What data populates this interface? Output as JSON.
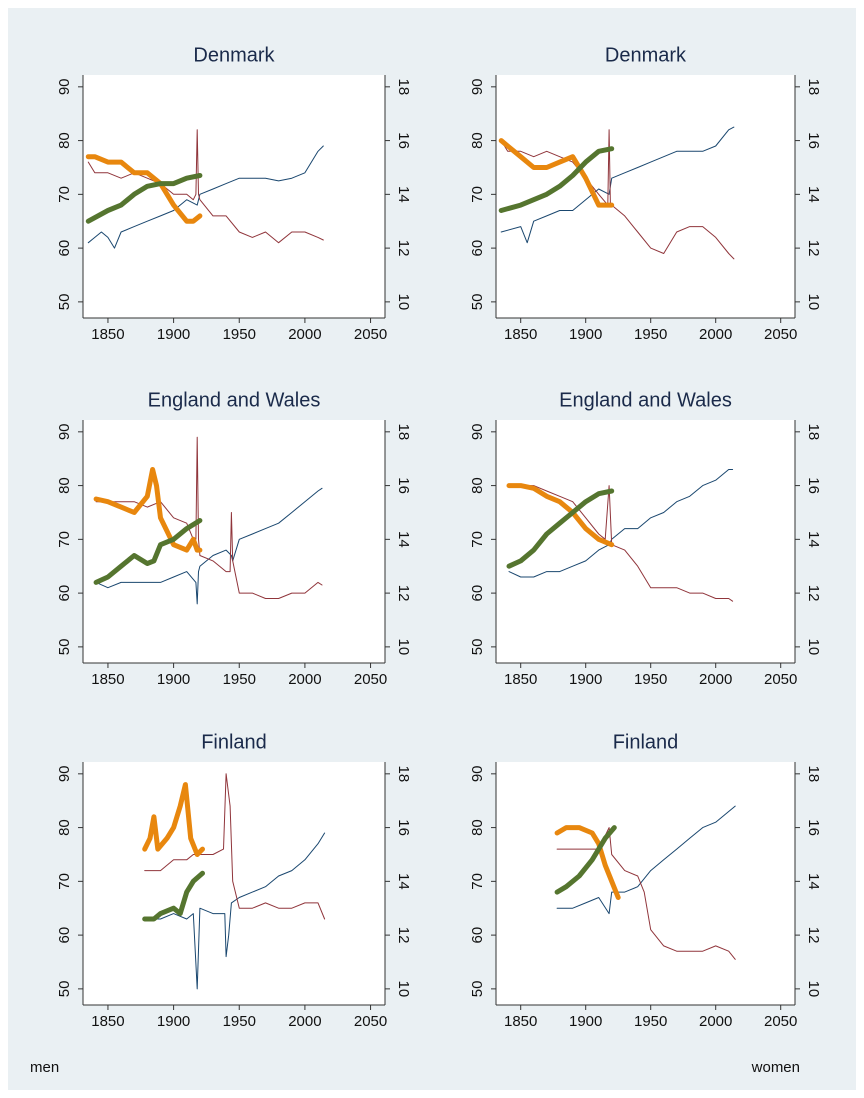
{
  "chart_data": [
    {
      "type": "line",
      "title": "Denmark",
      "xlim": [
        1831,
        2061
      ],
      "xticks": [
        1850,
        1900,
        1950,
        2000,
        2050
      ],
      "ylim": [
        47,
        92.2
      ],
      "yticks": [
        50,
        60,
        70,
        80,
        90
      ],
      "y2lim": [
        9.4,
        18.44
      ],
      "y2ticks": [
        10,
        12,
        14,
        16,
        18
      ],
      "series": [
        {
          "color": "#1a476f",
          "width": 1,
          "x": [
            1835,
            1840,
            1845,
            1850,
            1855,
            1860,
            1870,
            1880,
            1890,
            1900,
            1910,
            1918,
            1920,
            1930,
            1940,
            1950,
            1960,
            1970,
            1980,
            1990,
            2000,
            2010,
            2014
          ],
          "values": [
            61,
            62,
            63,
            62,
            60,
            63,
            64,
            65,
            66,
            67,
            69,
            68,
            70,
            71,
            72,
            73,
            73,
            73,
            72.5,
            73,
            74,
            78,
            79
          ]
        },
        {
          "color": "#90353b",
          "width": 1,
          "x": [
            1835,
            1840,
            1850,
            1860,
            1870,
            1880,
            1890,
            1900,
            1910,
            1915,
            1917,
            1918,
            1919,
            1920,
            1930,
            1940,
            1950,
            1960,
            1970,
            1980,
            1990,
            2000,
            2010,
            2014
          ],
          "values": [
            76,
            74,
            74,
            73,
            74,
            73,
            72,
            70,
            70,
            69,
            70,
            82,
            70,
            69,
            66,
            66,
            63,
            62,
            63,
            61,
            63,
            63,
            62,
            61.5
          ]
        },
        {
          "color": "#e8870e",
          "width": 5,
          "axis": "y2",
          "x": [
            1835,
            1840,
            1850,
            1860,
            1870,
            1880,
            1890,
            1900,
            1910,
            1915,
            1920
          ],
          "values": [
            15.4,
            15.4,
            15.2,
            15.2,
            14.8,
            14.8,
            14.4,
            13.6,
            13.0,
            13.0,
            13.2
          ]
        },
        {
          "color": "#55752f",
          "width": 5,
          "axis": "y2",
          "x": [
            1835,
            1850,
            1860,
            1870,
            1880,
            1890,
            1900,
            1910,
            1920
          ],
          "values": [
            13.0,
            13.4,
            13.6,
            14.0,
            14.3,
            14.4,
            14.4,
            14.6,
            14.7
          ]
        }
      ]
    },
    {
      "type": "line",
      "title": "Denmark",
      "xlim": [
        1831,
        2061
      ],
      "xticks": [
        1850,
        1900,
        1950,
        2000,
        2050
      ],
      "ylim": [
        47,
        92.2
      ],
      "yticks": [
        50,
        60,
        70,
        80,
        90
      ],
      "y2lim": [
        9.4,
        18.44
      ],
      "y2ticks": [
        10,
        12,
        14,
        16,
        18
      ],
      "series": [
        {
          "color": "#1a476f",
          "width": 1,
          "x": [
            1835,
            1850,
            1855,
            1860,
            1870,
            1880,
            1890,
            1900,
            1910,
            1918,
            1920,
            1930,
            1940,
            1950,
            1960,
            1970,
            1980,
            1990,
            2000,
            2010,
            2014
          ],
          "values": [
            63,
            64,
            61,
            65,
            66,
            67,
            67,
            69,
            71,
            70,
            73,
            74,
            75,
            76,
            77,
            78,
            78,
            78,
            79,
            82,
            82.5
          ]
        },
        {
          "color": "#90353b",
          "width": 1,
          "x": [
            1835,
            1840,
            1850,
            1860,
            1870,
            1880,
            1890,
            1900,
            1910,
            1917,
            1918,
            1919,
            1920,
            1930,
            1940,
            1950,
            1960,
            1970,
            1980,
            1990,
            2000,
            2010,
            2014
          ],
          "values": [
            80,
            78,
            78,
            77,
            78,
            77,
            76,
            73,
            70,
            68,
            82,
            68,
            68,
            66,
            63,
            60,
            59,
            63,
            64,
            64,
            62,
            59,
            58
          ]
        },
        {
          "color": "#e8870e",
          "width": 5,
          "axis": "y2",
          "x": [
            1835,
            1840,
            1850,
            1860,
            1870,
            1880,
            1890,
            1900,
            1910,
            1920
          ],
          "values": [
            16.0,
            15.8,
            15.4,
            15.0,
            15.0,
            15.2,
            15.4,
            14.6,
            13.6,
            13.6
          ]
        },
        {
          "color": "#55752f",
          "width": 5,
          "axis": "y2",
          "x": [
            1835,
            1850,
            1860,
            1870,
            1880,
            1890,
            1900,
            1910,
            1920
          ],
          "values": [
            13.4,
            13.6,
            13.8,
            14.0,
            14.3,
            14.7,
            15.2,
            15.6,
            15.7
          ]
        }
      ]
    },
    {
      "type": "line",
      "title": "England and Wales",
      "xlim": [
        1831,
        2061
      ],
      "xticks": [
        1850,
        1900,
        1950,
        2000,
        2050
      ],
      "ylim": [
        47,
        92.2
      ],
      "yticks": [
        50,
        60,
        70,
        80,
        90
      ],
      "y2lim": [
        9.4,
        18.44
      ],
      "y2ticks": [
        10,
        12,
        14,
        16,
        18
      ],
      "series": [
        {
          "color": "#1a476f",
          "width": 1,
          "x": [
            1841,
            1850,
            1860,
            1870,
            1880,
            1890,
            1900,
            1910,
            1917,
            1918,
            1919,
            1920,
            1930,
            1940,
            1944,
            1945,
            1950,
            1960,
            1970,
            1980,
            1990,
            2000,
            2010,
            2013
          ],
          "values": [
            62,
            61,
            62,
            62,
            62,
            62,
            63,
            64,
            62,
            58,
            64,
            65,
            67,
            68,
            67,
            66,
            70,
            71,
            72,
            73,
            75,
            77,
            79,
            79.5
          ]
        },
        {
          "color": "#90353b",
          "width": 1,
          "x": [
            1841,
            1850,
            1860,
            1870,
            1880,
            1890,
            1900,
            1910,
            1915,
            1917,
            1918,
            1919,
            1920,
            1930,
            1940,
            1943,
            1944,
            1945,
            1950,
            1960,
            1970,
            1980,
            1990,
            2000,
            2010,
            2013
          ],
          "values": [
            77,
            77,
            77,
            77,
            76,
            77,
            74,
            73,
            70,
            70,
            89,
            70,
            67,
            66,
            64,
            64,
            75,
            66,
            60,
            60,
            59,
            59,
            60,
            60,
            62,
            61.5
          ]
        },
        {
          "color": "#e8870e",
          "width": 5,
          "axis": "y2",
          "x": [
            1841,
            1850,
            1860,
            1870,
            1880,
            1884,
            1887,
            1890,
            1900,
            1910,
            1915,
            1918,
            1920
          ],
          "values": [
            15.5,
            15.4,
            15.2,
            15.0,
            15.6,
            16.6,
            16.0,
            14.8,
            13.8,
            13.6,
            14.0,
            13.6,
            13.6
          ]
        },
        {
          "color": "#55752f",
          "width": 5,
          "axis": "y2",
          "x": [
            1841,
            1850,
            1860,
            1870,
            1880,
            1885,
            1890,
            1900,
            1910,
            1920
          ],
          "values": [
            12.4,
            12.6,
            13.0,
            13.4,
            13.1,
            13.2,
            13.8,
            14.0,
            14.4,
            14.7
          ]
        }
      ]
    },
    {
      "type": "line",
      "title": "England and Wales",
      "xlim": [
        1831,
        2061
      ],
      "xticks": [
        1850,
        1900,
        1950,
        2000,
        2050
      ],
      "ylim": [
        47,
        92.2
      ],
      "yticks": [
        50,
        60,
        70,
        80,
        90
      ],
      "y2lim": [
        9.4,
        18.44
      ],
      "y2ticks": [
        10,
        12,
        14,
        16,
        18
      ],
      "series": [
        {
          "color": "#1a476f",
          "width": 1,
          "x": [
            1841,
            1850,
            1860,
            1870,
            1880,
            1890,
            1900,
            1910,
            1918,
            1920,
            1930,
            1940,
            1950,
            1960,
            1970,
            1980,
            1990,
            2000,
            2010,
            2013
          ],
          "values": [
            64,
            63,
            63,
            64,
            64,
            65,
            66,
            68,
            69,
            70,
            72,
            72,
            74,
            75,
            77,
            78,
            80,
            81,
            83,
            83
          ]
        },
        {
          "color": "#90353b",
          "width": 1,
          "x": [
            1841,
            1850,
            1860,
            1870,
            1880,
            1890,
            1900,
            1910,
            1915,
            1918,
            1920,
            1930,
            1940,
            1950,
            1960,
            1970,
            1980,
            1990,
            2000,
            2010,
            2013
          ],
          "values": [
            80,
            80,
            80,
            79,
            78,
            77,
            74,
            71,
            70,
            80,
            69,
            68,
            65,
            61,
            61,
            61,
            60,
            60,
            59,
            59,
            58.5
          ]
        },
        {
          "color": "#e8870e",
          "width": 5,
          "axis": "y2",
          "x": [
            1841,
            1850,
            1860,
            1870,
            1880,
            1890,
            1900,
            1910,
            1920
          ],
          "values": [
            16.0,
            16.0,
            15.9,
            15.6,
            15.4,
            15.0,
            14.4,
            14.0,
            13.8
          ]
        },
        {
          "color": "#55752f",
          "width": 5,
          "axis": "y2",
          "x": [
            1841,
            1850,
            1860,
            1870,
            1880,
            1890,
            1900,
            1910,
            1920
          ],
          "values": [
            13.0,
            13.2,
            13.6,
            14.2,
            14.6,
            15.0,
            15.4,
            15.7,
            15.8
          ]
        }
      ]
    },
    {
      "type": "line",
      "title": "Finland",
      "xlim": [
        1831,
        2061
      ],
      "xticks": [
        1850,
        1900,
        1950,
        2000,
        2050
      ],
      "ylim": [
        47,
        92.2
      ],
      "yticks": [
        50,
        60,
        70,
        80,
        90
      ],
      "y2lim": [
        9.4,
        18.44
      ],
      "y2ticks": [
        10,
        12,
        14,
        16,
        18
      ],
      "series": [
        {
          "color": "#1a476f",
          "width": 1,
          "x": [
            1878,
            1890,
            1900,
            1910,
            1915,
            1918,
            1920,
            1930,
            1939,
            1940,
            1942,
            1944,
            1950,
            1960,
            1970,
            1980,
            1990,
            2000,
            2010,
            2015
          ],
          "values": [
            63,
            63,
            64,
            63,
            64,
            50,
            65,
            64,
            64,
            56,
            60,
            66,
            67,
            68,
            69,
            71,
            72,
            74,
            77,
            79
          ]
        },
        {
          "color": "#90353b",
          "width": 1,
          "x": [
            1878,
            1890,
            1900,
            1910,
            1915,
            1920,
            1930,
            1938,
            1940,
            1943,
            1945,
            1950,
            1960,
            1970,
            1980,
            1990,
            2000,
            2010,
            2015
          ],
          "values": [
            72,
            72,
            74,
            74,
            75,
            75,
            75,
            76,
            90,
            84,
            70,
            65,
            65,
            66,
            65,
            65,
            66,
            66,
            63
          ]
        },
        {
          "color": "#e8870e",
          "width": 5,
          "axis": "y2",
          "x": [
            1878,
            1882,
            1885,
            1888,
            1895,
            1900,
            1905,
            1909,
            1913,
            1918,
            1922
          ],
          "values": [
            15.2,
            15.6,
            16.4,
            15.2,
            15.6,
            16.0,
            16.8,
            17.6,
            15.6,
            15.0,
            15.2
          ]
        },
        {
          "color": "#55752f",
          "width": 5,
          "axis": "y2",
          "x": [
            1878,
            1885,
            1890,
            1900,
            1905,
            1910,
            1915,
            1922
          ],
          "values": [
            12.6,
            12.6,
            12.8,
            13.0,
            12.8,
            13.6,
            14.0,
            14.3
          ]
        }
      ]
    },
    {
      "type": "line",
      "title": "Finland",
      "xlim": [
        1831,
        2061
      ],
      "xticks": [
        1850,
        1900,
        1950,
        2000,
        2050
      ],
      "ylim": [
        47,
        92.2
      ],
      "yticks": [
        50,
        60,
        70,
        80,
        90
      ],
      "y2lim": [
        9.4,
        18.44
      ],
      "y2ticks": [
        10,
        12,
        14,
        16,
        18
      ],
      "series": [
        {
          "color": "#1a476f",
          "width": 1,
          "x": [
            1878,
            1890,
            1900,
            1910,
            1918,
            1920,
            1930,
            1940,
            1950,
            1960,
            1970,
            1980,
            1990,
            2000,
            2010,
            2015
          ],
          "values": [
            65,
            65,
            66,
            67,
            64,
            68,
            68,
            69,
            72,
            74,
            76,
            78,
            80,
            81,
            83,
            84
          ]
        },
        {
          "color": "#90353b",
          "width": 1,
          "x": [
            1878,
            1890,
            1900,
            1910,
            1918,
            1920,
            1930,
            1940,
            1945,
            1950,
            1960,
            1970,
            1980,
            1990,
            2000,
            2010,
            2015
          ],
          "values": [
            76,
            76,
            76,
            76,
            80,
            75,
            72,
            71,
            68,
            61,
            58,
            57,
            57,
            57,
            58,
            57,
            55.5
          ]
        },
        {
          "color": "#e8870e",
          "width": 5,
          "axis": "y2",
          "x": [
            1878,
            1885,
            1895,
            1905,
            1910,
            1915,
            1920,
            1925
          ],
          "values": [
            15.8,
            16.0,
            16.0,
            15.8,
            15.4,
            14.6,
            14.0,
            13.4
          ]
        },
        {
          "color": "#55752f",
          "width": 5,
          "axis": "y2",
          "x": [
            1878,
            1885,
            1895,
            1905,
            1910,
            1915,
            1922
          ],
          "values": [
            13.6,
            13.8,
            14.2,
            14.8,
            15.2,
            15.6,
            16.0
          ]
        }
      ]
    }
  ],
  "footer": {
    "left": "men",
    "right": "women"
  }
}
